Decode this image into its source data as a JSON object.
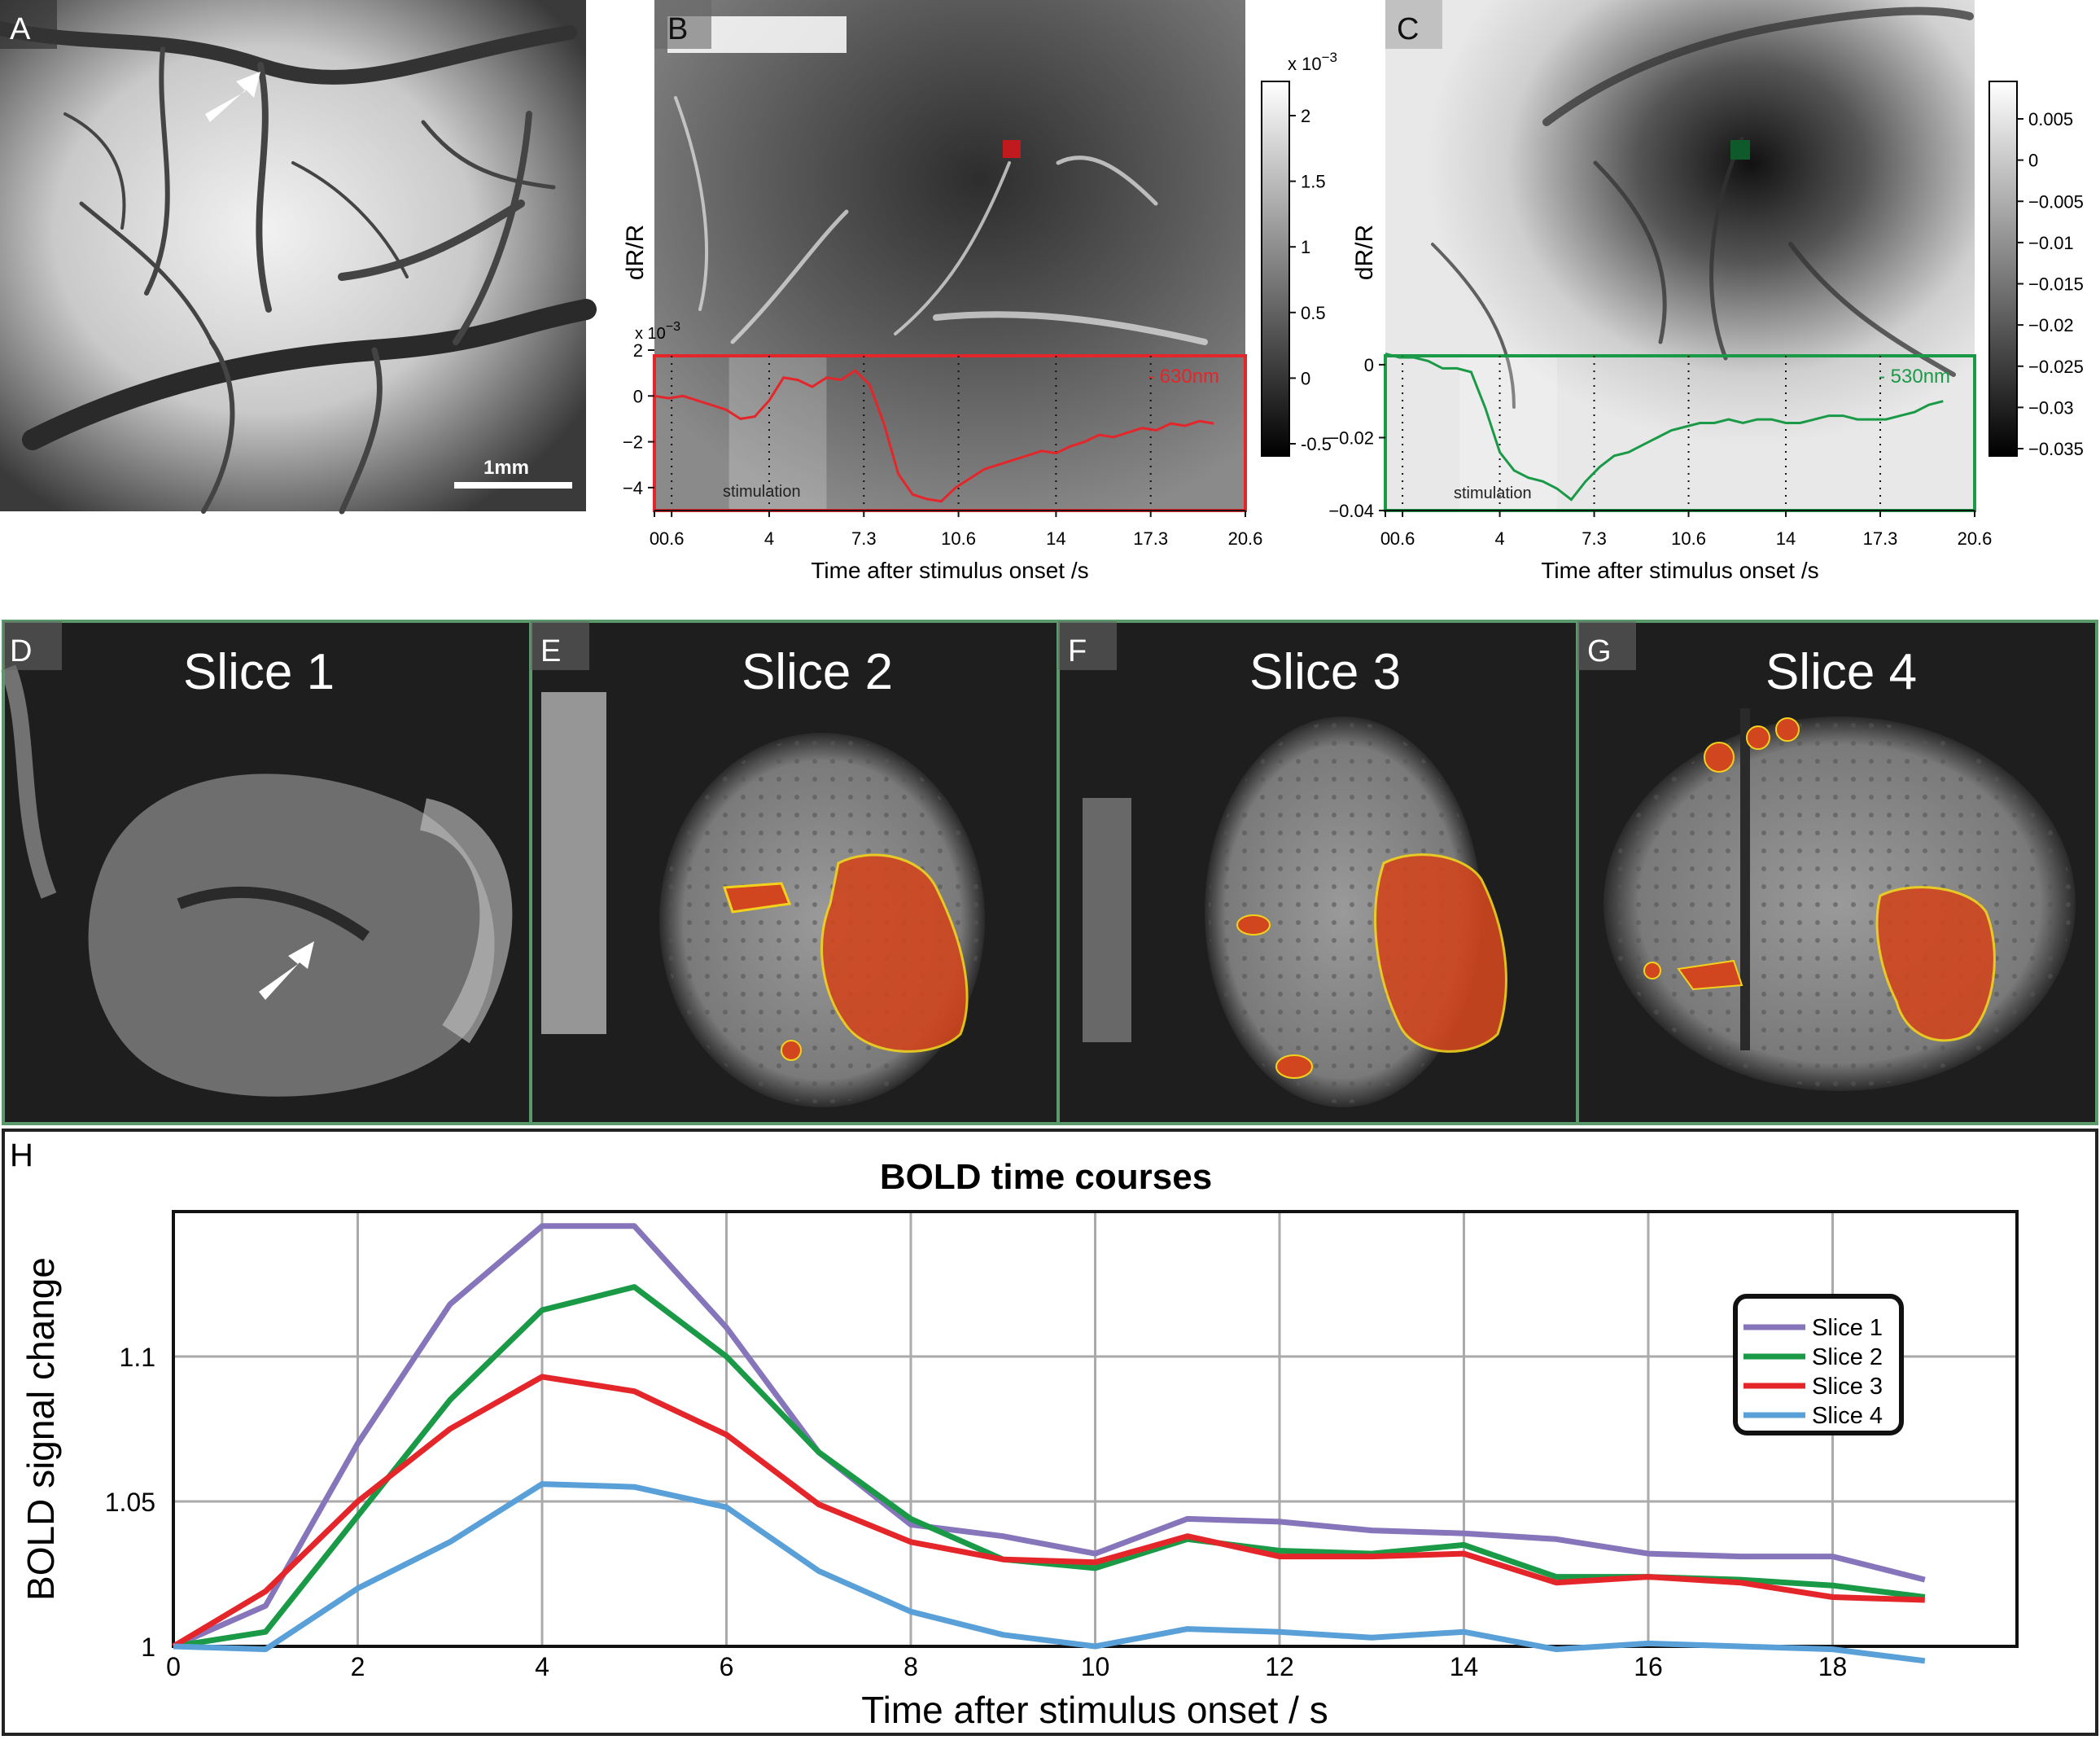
{
  "panels": {
    "a": {
      "letter": "A",
      "scale_bar": "1mm"
    },
    "b": {
      "letter": "B",
      "ylabel": "dR/R",
      "exponent": "x 10",
      "exponent_power": "−3",
      "wavelength": "- 630nm",
      "stimulation": "stimulation",
      "colorbar": {
        "exponent": "x 10",
        "exponent_power": "−3",
        "ticks": [
          "2",
          "1.5",
          "1",
          "0.5",
          "0",
          "-0.5"
        ]
      }
    },
    "c": {
      "letter": "C",
      "ylabel": "dR/R",
      "wavelength": "- 530nm",
      "stimulation": "stimulation",
      "colorbar": {
        "ticks": [
          "0.005",
          "0",
          "−0.005",
          "−0.01",
          "−0.015",
          "−0.02",
          "−0.025",
          "−0.03",
          "−0.035"
        ]
      }
    },
    "d": {
      "letter": "D",
      "title": "Slice 1"
    },
    "e": {
      "letter": "E",
      "title": "Slice 2"
    },
    "f": {
      "letter": "F",
      "title": "Slice 3"
    },
    "g": {
      "letter": "G",
      "title": "Slice 4"
    },
    "h": {
      "letter": "H"
    }
  },
  "colors": {
    "red": "#e4262a",
    "green": "#1a9a47",
    "purple": "#8775bb",
    "blue": "#5aa0d8",
    "frame_green": "#5a9a6a"
  },
  "chart_data": [
    {
      "type": "line",
      "id": "B",
      "xlabel": "Time after stimulus onset  /s",
      "ylabel": "dR/R",
      "y_exponent": "x 10^-3",
      "xlim": [
        0,
        20.6
      ],
      "ylim": [
        -5,
        2
      ],
      "x_ticks": [
        0,
        0.6,
        4,
        7.3,
        10.6,
        14,
        17.3,
        20.6
      ],
      "x_tick_labels": [
        "0",
        "0.6",
        "4",
        "7.3",
        "10.6",
        "14",
        "17.3",
        "20.6"
      ],
      "y_ticks": [
        2,
        0,
        -2,
        -4
      ],
      "y_tick_labels": [
        "2",
        "0",
        "−2",
        "−4"
      ],
      "stimulation_window": [
        2.6,
        6.0
      ],
      "series": [
        {
          "name": "630nm",
          "color": "#e4262a",
          "x": [
            0,
            0.5,
            1,
            1.5,
            2,
            2.5,
            3,
            3.5,
            4,
            4.5,
            5,
            5.5,
            6,
            6.5,
            7,
            7.5,
            8,
            8.5,
            9,
            9.5,
            10,
            10.5,
            11,
            11.5,
            12,
            12.5,
            13,
            13.5,
            14,
            14.5,
            15,
            15.5,
            16,
            16.5,
            17,
            17.5,
            18,
            18.5,
            19,
            19.5
          ],
          "y": [
            0,
            -0.1,
            0,
            -0.2,
            -0.4,
            -0.6,
            -1.0,
            -0.9,
            -0.2,
            0.8,
            0.7,
            0.4,
            0.8,
            0.7,
            1.1,
            0.5,
            -1.2,
            -3.4,
            -4.3,
            -4.5,
            -4.6,
            -4.0,
            -3.6,
            -3.2,
            -3.0,
            -2.8,
            -2.6,
            -2.4,
            -2.5,
            -2.2,
            -2.0,
            -1.7,
            -1.8,
            -1.6,
            -1.4,
            -1.5,
            -1.2,
            -1.3,
            -1.1,
            -1.2
          ]
        }
      ]
    },
    {
      "type": "line",
      "id": "C",
      "xlabel": "Time after stimulus onset  /s",
      "ylabel": "dR/R",
      "xlim": [
        0,
        20.6
      ],
      "ylim": [
        -0.04,
        0.004
      ],
      "x_ticks": [
        0,
        0.6,
        4,
        7.3,
        10.6,
        14,
        17.3,
        20.6
      ],
      "x_tick_labels": [
        "0",
        "0.6",
        "4",
        "7.3",
        "10.6",
        "14",
        "17.3",
        "20.6"
      ],
      "y_ticks": [
        0,
        -0.02,
        -0.04
      ],
      "y_tick_labels": [
        "0",
        "−0.02",
        "−0.04"
      ],
      "stimulation_window": [
        2.6,
        6.0
      ],
      "series": [
        {
          "name": "530nm",
          "color": "#1a9a47",
          "x": [
            0,
            0.5,
            1,
            1.5,
            2,
            2.5,
            3,
            3.5,
            4,
            4.5,
            5,
            5.5,
            6,
            6.5,
            7,
            7.5,
            8,
            8.5,
            9,
            9.5,
            10,
            10.5,
            11,
            11.5,
            12,
            12.5,
            13,
            13.5,
            14,
            14.5,
            15,
            15.5,
            16,
            16.5,
            17,
            17.5,
            18,
            18.5,
            19,
            19.5
          ],
          "y": [
            0.003,
            0.002,
            0.002,
            0.001,
            -0.001,
            -0.001,
            -0.002,
            -0.012,
            -0.024,
            -0.029,
            -0.031,
            -0.032,
            -0.034,
            -0.037,
            -0.032,
            -0.028,
            -0.025,
            -0.024,
            -0.022,
            -0.02,
            -0.018,
            -0.017,
            -0.016,
            -0.016,
            -0.015,
            -0.016,
            -0.015,
            -0.015,
            -0.016,
            -0.016,
            -0.015,
            -0.014,
            -0.014,
            -0.015,
            -0.015,
            -0.015,
            -0.014,
            -0.013,
            -0.011,
            -0.01
          ]
        }
      ]
    },
    {
      "type": "line",
      "id": "H",
      "title": "BOLD time courses",
      "xlabel": "Time after stimulus onset / s",
      "ylabel": "BOLD signal change",
      "xlim": [
        0,
        20
      ],
      "ylim": [
        1,
        1.15
      ],
      "grid": true,
      "legend": "right",
      "x_ticks": [
        0,
        2,
        4,
        6,
        8,
        10,
        12,
        14,
        16,
        18
      ],
      "y_ticks": [
        1,
        1.05,
        1.1
      ],
      "x": [
        0,
        1,
        2,
        3,
        4,
        5,
        6,
        7,
        8,
        9,
        10,
        11,
        12,
        13,
        14,
        15,
        16,
        17,
        18,
        19
      ],
      "series": [
        {
          "name": "Slice 1",
          "color": "#8775bb",
          "values": [
            1.0,
            1.014,
            1.07,
            1.118,
            1.145,
            1.145,
            1.11,
            1.067,
            1.042,
            1.038,
            1.032,
            1.044,
            1.043,
            1.04,
            1.039,
            1.037,
            1.032,
            1.031,
            1.031,
            1.023
          ]
        },
        {
          "name": "Slice 2",
          "color": "#1a9a47",
          "values": [
            1.0,
            1.005,
            1.045,
            1.085,
            1.116,
            1.124,
            1.1,
            1.067,
            1.044,
            1.03,
            1.027,
            1.037,
            1.033,
            1.032,
            1.035,
            1.024,
            1.024,
            1.023,
            1.021,
            1.017
          ]
        },
        {
          "name": "Slice 3",
          "color": "#e4262a",
          "values": [
            1.0,
            1.019,
            1.05,
            1.075,
            1.093,
            1.088,
            1.073,
            1.049,
            1.036,
            1.03,
            1.029,
            1.038,
            1.031,
            1.031,
            1.032,
            1.022,
            1.024,
            1.022,
            1.017,
            1.016
          ]
        },
        {
          "name": "Slice 4",
          "color": "#5aa0d8",
          "values": [
            1.0,
            0.999,
            1.02,
            1.036,
            1.056,
            1.055,
            1.048,
            1.026,
            1.012,
            1.004,
            1.0,
            1.006,
            1.005,
            1.003,
            1.005,
            0.999,
            1.001,
            1.0,
            0.999,
            0.995
          ]
        }
      ]
    }
  ]
}
